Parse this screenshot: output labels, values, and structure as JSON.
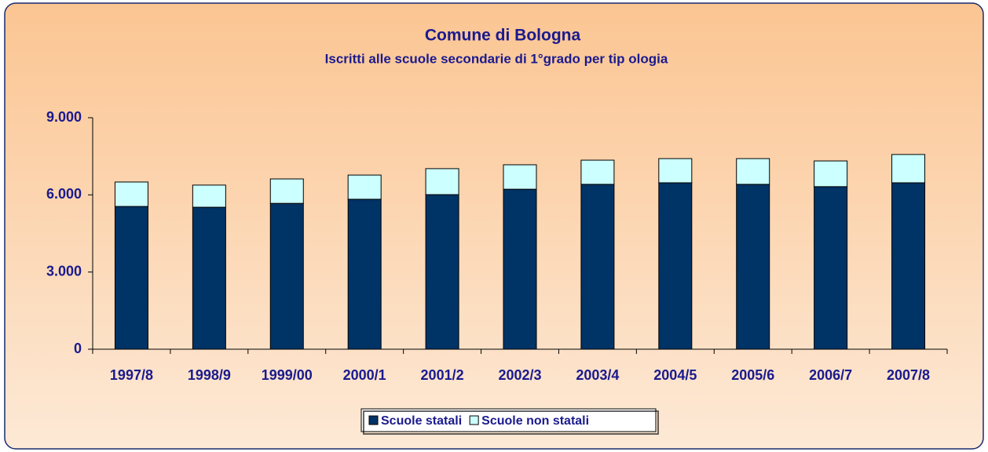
{
  "chart_data": {
    "type": "stacked-bar",
    "title": "Comune di  Bologna",
    "subtitle": "Iscritti alle scuole secondarie di 1°grado per tip ologia",
    "categories": [
      "1997/8",
      "1998/9",
      "1999/00",
      "2000/1",
      "2001/2",
      "2002/3",
      "2003/4",
      "2004/5",
      "2005/6",
      "2006/7",
      "2007/8"
    ],
    "series": [
      {
        "name": "Scuole statali",
        "color": "#003366",
        "values": [
          5550,
          5520,
          5670,
          5830,
          6010,
          6220,
          6410,
          6470,
          6410,
          6320,
          6470
        ]
      },
      {
        "name": "Scuole non statali",
        "color": "#ccffff",
        "values": [
          950,
          860,
          950,
          940,
          1010,
          950,
          940,
          940,
          1000,
          1000,
          1100
        ]
      }
    ],
    "ylim": [
      0,
      9000
    ],
    "yticks": [
      0,
      {
        "value": 3000,
        "label": "3.000"
      },
      {
        "value": 6000,
        "label": "6.000"
      },
      {
        "value": 9000,
        "label": "9.000"
      }
    ],
    "legend": "bottom"
  }
}
